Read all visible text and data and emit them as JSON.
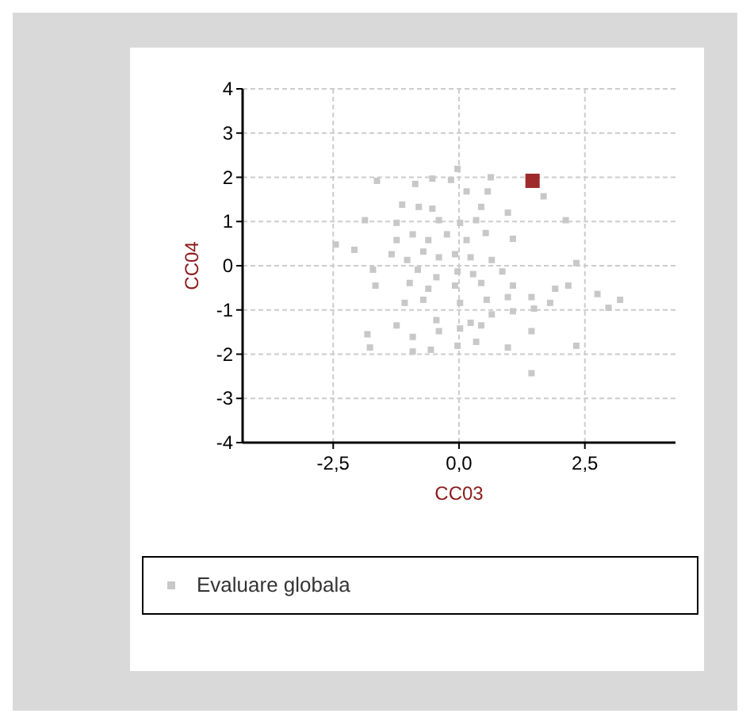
{
  "chart_data": {
    "type": "scatter",
    "xlabel": "CC03",
    "ylabel": "CC04",
    "xlim": [
      -4.3,
      4.3
    ],
    "ylim": [
      -4,
      4
    ],
    "xticks": [
      {
        "value": -2.5,
        "label": "-2,5"
      },
      {
        "value": 0,
        "label": "0,0"
      },
      {
        "value": 2.5,
        "label": "2,5"
      }
    ],
    "yticks": [
      -4,
      -3,
      -2,
      -1,
      0,
      1,
      2,
      3,
      4
    ],
    "grid": true,
    "legend": "bottom",
    "series": [
      {
        "color": "#9e2a2b",
        "marker": "square",
        "x": [
          1.46
        ],
        "values": [
          1.92
        ]
      },
      {
        "name": "Evaluare globala",
        "color": "#c8c8c8",
        "marker": "square",
        "x": [
          -1.63,
          -0.87,
          -0.53,
          -0.03,
          -0.16,
          0.15,
          0.63,
          0.57,
          1.68,
          -1.13,
          -0.8,
          -0.53,
          0.44,
          0.97,
          -1.87,
          -1.24,
          -0.4,
          0.02,
          0.34,
          2.12,
          -2.45,
          -2.08,
          -1.24,
          -0.92,
          -0.61,
          -0.24,
          0.15,
          0.53,
          1.07,
          -1.34,
          -1.03,
          -0.71,
          -0.4,
          -0.08,
          0.23,
          0.65,
          -1.71,
          -0.82,
          -0.45,
          -0.03,
          0.28,
          0.86,
          -1.66,
          -0.98,
          -0.61,
          -0.08,
          0.44,
          1.07,
          2.33,
          1.91,
          2.17,
          -1.08,
          -0.71,
          0.02,
          0.55,
          0.97,
          1.44,
          1.81,
          -1.24,
          -0.45,
          0.23,
          0.65,
          1.07,
          1.49,
          -1.82,
          -0.92,
          -0.4,
          0.02,
          0.44,
          1.44,
          -1.77,
          -0.92,
          -0.56,
          -0.03,
          0.34,
          0.97,
          2.33,
          1.44,
          2.75,
          2.97,
          3.2
        ],
        "values": [
          1.92,
          1.85,
          1.97,
          2.19,
          1.94,
          1.68,
          2.0,
          1.68,
          1.57,
          1.38,
          1.33,
          1.29,
          1.33,
          1.2,
          1.03,
          0.97,
          1.03,
          0.97,
          1.03,
          1.03,
          0.48,
          0.36,
          0.58,
          0.71,
          0.58,
          0.71,
          0.58,
          0.74,
          0.61,
          0.26,
          0.13,
          0.32,
          0.19,
          0.26,
          0.19,
          0.13,
          -0.09,
          -0.09,
          -0.26,
          -0.13,
          -0.19,
          -0.13,
          -0.45,
          -0.39,
          -0.52,
          -0.45,
          -0.39,
          -0.45,
          0.06,
          -0.52,
          -0.45,
          -0.84,
          -0.77,
          -0.84,
          -0.77,
          -0.71,
          -0.71,
          -0.84,
          -1.35,
          -1.23,
          -1.29,
          -1.1,
          -1.03,
          -0.97,
          -1.55,
          -1.61,
          -1.48,
          -1.42,
          -1.35,
          -1.48,
          -1.85,
          -1.94,
          -1.9,
          -1.81,
          -1.72,
          -1.85,
          -1.81,
          -2.43,
          -0.64,
          -0.95,
          -0.77
        ]
      }
    ]
  }
}
